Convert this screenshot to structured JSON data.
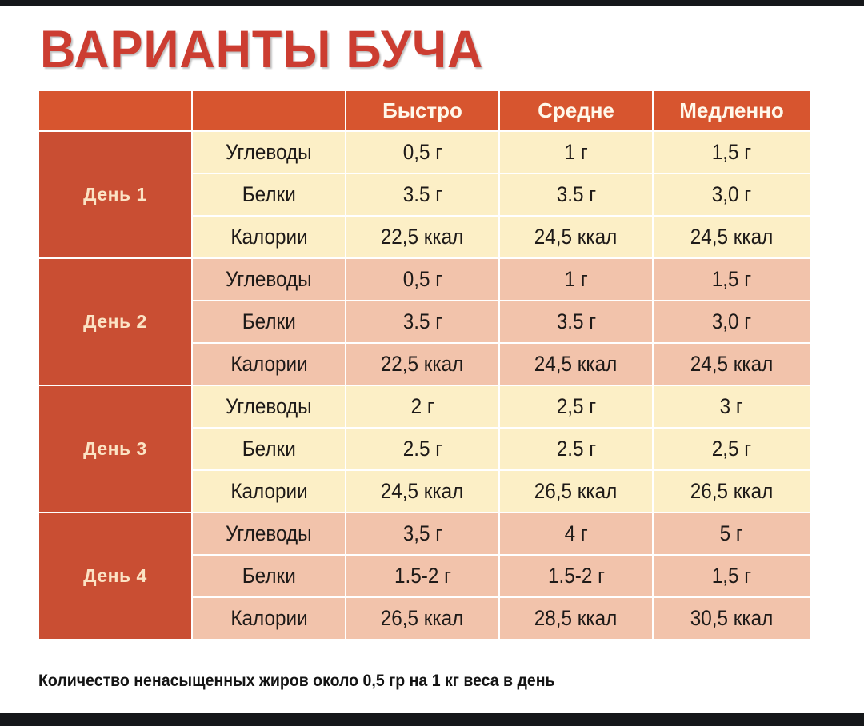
{
  "title": "ВАРИАНТЫ БУЧА",
  "table": {
    "headers": [
      "",
      "",
      "Быстро",
      "Средне",
      "Медленно"
    ],
    "groups": [
      {
        "day": "День 1",
        "rows": [
          {
            "label": "Углеводы",
            "values": [
              "0,5 г",
              "1 г",
              "1,5 г"
            ]
          },
          {
            "label": "Белки",
            "values": [
              "3.5 г",
              "3.5 г",
              "3,0 г"
            ]
          },
          {
            "label": "Калории",
            "values": [
              "22,5 ккал",
              "24,5 ккал",
              "24,5 ккал"
            ]
          }
        ]
      },
      {
        "day": "День 2",
        "rows": [
          {
            "label": "Углеводы",
            "values": [
              "0,5 г",
              "1 г",
              "1,5 г"
            ]
          },
          {
            "label": "Белки",
            "values": [
              "3.5 г",
              "3.5 г",
              "3,0 г"
            ]
          },
          {
            "label": "Калории",
            "values": [
              "22,5 ккал",
              "24,5 ккал",
              "24,5 ккал"
            ]
          }
        ]
      },
      {
        "day": "День 3",
        "rows": [
          {
            "label": "Углеводы",
            "values": [
              "2 г",
              "2,5 г",
              "3 г"
            ]
          },
          {
            "label": "Белки",
            "values": [
              "2.5 г",
              "2.5 г",
              "2,5 г"
            ]
          },
          {
            "label": "Калории",
            "values": [
              "24,5 ккал",
              "26,5 ккал",
              "26,5 ккал"
            ]
          }
        ]
      },
      {
        "day": "День 4",
        "rows": [
          {
            "label": "Углеводы",
            "values": [
              "3,5 г",
              "4 г",
              "5 г"
            ]
          },
          {
            "label": "Белки",
            "values": [
              "1.5-2 г",
              "1.5-2 г",
              "1,5 г"
            ]
          },
          {
            "label": "Калории",
            "values": [
              "26,5 ккал",
              "28,5 ккал",
              "30,5 ккал"
            ]
          }
        ]
      }
    ]
  },
  "footnote": "Количество ненасыщенных жиров около 0,5 гр на 1 кг веса в день",
  "colors": {
    "title": "#cc3d31",
    "header": "#d7552f",
    "day_cell": "#c94e33",
    "band_light": "#fcefc6",
    "band_pink": "#f2c3ab"
  }
}
